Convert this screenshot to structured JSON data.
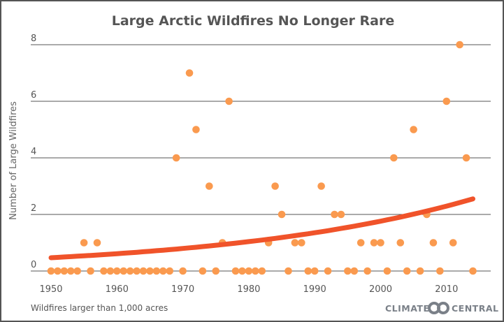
{
  "chart_data": {
    "type": "scatter",
    "title": "Large Arctic Wildfires No Longer Rare",
    "xlabel": "",
    "ylabel": "Number of Large Wildfires",
    "xlim": [
      1948,
      2016
    ],
    "ylim": [
      0,
      8
    ],
    "grid": true,
    "x_ticks": [
      "1950",
      "1960",
      "1970",
      "1980",
      "1990",
      "2000",
      "2010"
    ],
    "y_ticks": [
      "0",
      "2",
      "4",
      "6",
      "8"
    ],
    "x": [
      1950,
      1951,
      1952,
      1953,
      1954,
      1955,
      1956,
      1957,
      1958,
      1959,
      1960,
      1961,
      1962,
      1963,
      1964,
      1965,
      1966,
      1967,
      1968,
      1969,
      1970,
      1971,
      1972,
      1973,
      1974,
      1975,
      1976,
      1977,
      1978,
      1979,
      1980,
      1981,
      1982,
      1983,
      1984,
      1985,
      1986,
      1987,
      1988,
      1989,
      1990,
      1991,
      1992,
      1993,
      1994,
      1995,
      1996,
      1997,
      1998,
      1999,
      2000,
      2001,
      2002,
      2003,
      2004,
      2005,
      2006,
      2007,
      2008,
      2009,
      2010,
      2011,
      2012,
      2013,
      2014
    ],
    "y": [
      0,
      0,
      0,
      0,
      0,
      1,
      0,
      1,
      0,
      0,
      0,
      0,
      0,
      0,
      0,
      0,
      0,
      0,
      0,
      4,
      0,
      7,
      5,
      0,
      3,
      0,
      1,
      6,
      0,
      0,
      0,
      0,
      0,
      1,
      3,
      2,
      0,
      1,
      1,
      0,
      0,
      3,
      0,
      2,
      2,
      0,
      0,
      1,
      0,
      1,
      1,
      0,
      4,
      1,
      0,
      5,
      0,
      2,
      1,
      0,
      6,
      1,
      8,
      4,
      0
    ],
    "trend": {
      "type": "exponential",
      "start": [
        1950,
        0.47
      ],
      "end": [
        2014,
        2.55
      ]
    },
    "colors": {
      "points": "#fa9a4f",
      "trend": "#f0532a",
      "grid": "#555555"
    }
  },
  "footer": {
    "note": "Wildfires larger than 1,000 acres",
    "logo_left": "CLIMATE",
    "logo_right": "CENTRAL"
  }
}
